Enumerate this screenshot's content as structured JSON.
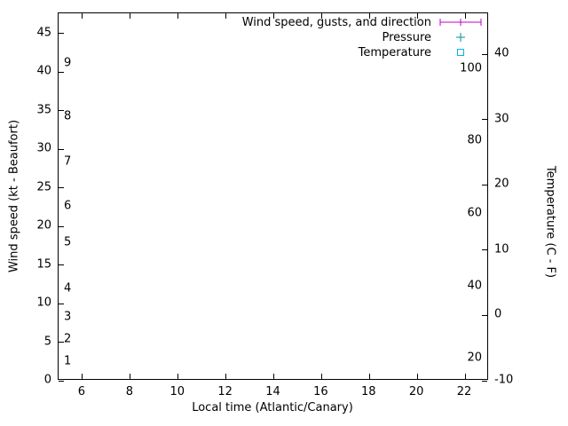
{
  "chart_data": {
    "type": "line",
    "title": "",
    "xlabel": "Local time (Atlantic/Canary)",
    "ylabel": "Wind speed (kt - Beaufort)",
    "y2label": "Temperature (C - F)",
    "xlim": [
      5,
      23
    ],
    "ylim": [
      0,
      47.6
    ],
    "y2lim": [
      -10,
      46.3
    ],
    "xticks": [
      6,
      8,
      10,
      12,
      14,
      16,
      18,
      20,
      22
    ],
    "yticks": [
      0,
      5,
      10,
      15,
      20,
      25,
      30,
      35,
      40,
      45
    ],
    "y2ticks": [
      -10,
      0,
      10,
      20,
      30,
      40
    ],
    "grid": false,
    "legend_position": "top-right-inside",
    "series": [
      {
        "name": "Wind speed, gusts, and direction",
        "color": "#c000c0",
        "symbol": "errorbar",
        "points": []
      },
      {
        "name": "Pressure",
        "color": "#009090",
        "symbol": "plus",
        "points": []
      },
      {
        "name": "Temperature",
        "color": "#00b4ee",
        "symbol": "open-square",
        "points": []
      }
    ],
    "beaufort_scale_labels": [
      {
        "label": "1",
        "kt": 2.4
      },
      {
        "label": "2",
        "kt": 5.3
      },
      {
        "label": "3",
        "kt": 8.2
      },
      {
        "label": "4",
        "kt": 11.9
      },
      {
        "label": "5",
        "kt": 17.8
      },
      {
        "label": "6",
        "kt": 22.5
      },
      {
        "label": "7",
        "kt": 28.3
      },
      {
        "label": "8",
        "kt": 34.2
      },
      {
        "label": "9",
        "kt": 41.0
      }
    ],
    "fahrenheit_scale_labels": [
      {
        "label": "20",
        "f": 20
      },
      {
        "label": "40",
        "f": 40
      },
      {
        "label": "60",
        "f": 60
      },
      {
        "label": "80",
        "f": 80
      },
      {
        "label": "100",
        "f": 100
      }
    ],
    "notes": "no data points plotted"
  }
}
